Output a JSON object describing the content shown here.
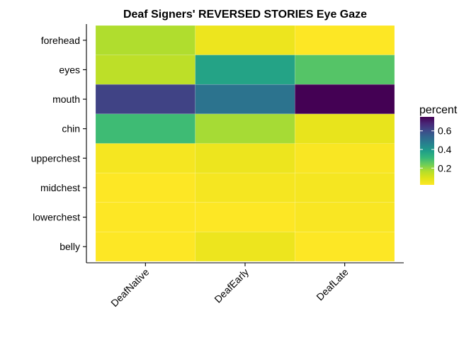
{
  "chart_data": {
    "type": "heatmap",
    "title": "Deaf Signers' REVERSED STORIES Eye Gaze",
    "x_categories": [
      "DeafNative",
      "DeafEarly",
      "DeafLate"
    ],
    "y_categories": [
      "forehead",
      "eyes",
      "mouth",
      "chin",
      "upperchest",
      "midchest",
      "lowerchest",
      "belly"
    ],
    "values": [
      [
        0.17,
        0.06,
        0.02
      ],
      [
        0.15,
        0.37,
        0.27
      ],
      [
        0.62,
        0.5,
        0.75
      ],
      [
        0.3,
        0.18,
        0.07
      ],
      [
        0.04,
        0.06,
        0.03
      ],
      [
        0.02,
        0.04,
        0.04
      ],
      [
        0.02,
        0.02,
        0.03
      ],
      [
        0.02,
        0.06,
        0.02
      ]
    ],
    "legend": {
      "title": "percent",
      "ticks": [
        0.2,
        0.4,
        0.6
      ],
      "tick_labels": [
        "0.2",
        "0.4",
        "0.6"
      ],
      "range": [
        0.02,
        0.75
      ]
    },
    "colorscale": "viridis-reversed",
    "grid": false
  }
}
